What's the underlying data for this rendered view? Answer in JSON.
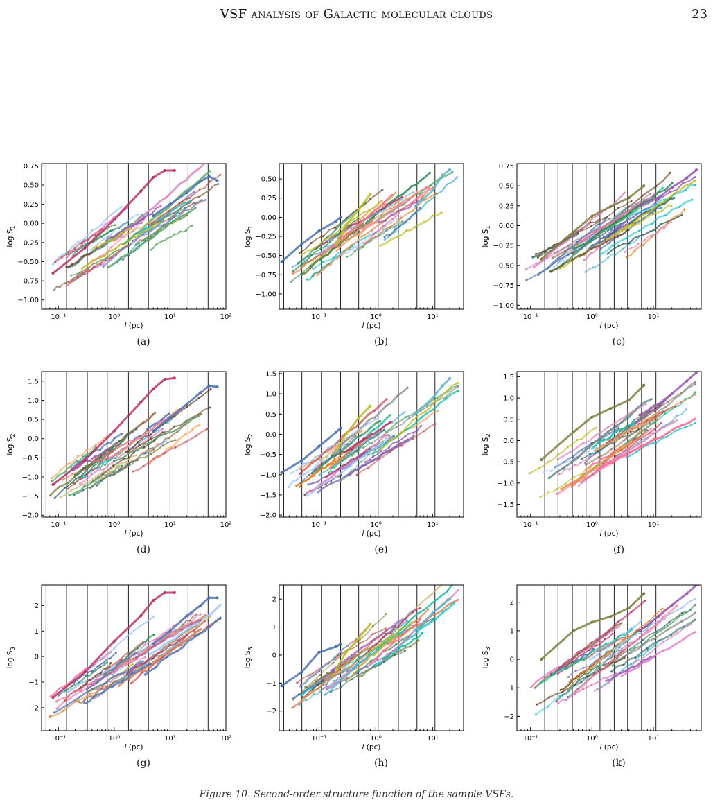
{
  "header": {
    "running_title": "VSF analysis of Galactic molecular clouds",
    "page_number": "23"
  },
  "caption": {
    "text": "Figure 10. Second-order structure function of the sample VSFs."
  },
  "style": {
    "palette": [
      "#4c72b0",
      "#dd8452",
      "#55a868",
      "#c44e52",
      "#8172b3",
      "#937860",
      "#da8bc3",
      "#8c8c8c",
      "#ccb974",
      "#64b5cd",
      "#b8336a",
      "#2e8b57",
      "#9b59b6",
      "#e67e22",
      "#1abc9c",
      "#7f7f3f",
      "#e377c2",
      "#17becf",
      "#bcbd22",
      "#6b4226",
      "#ff6f91",
      "#3c6e71",
      "#a0c4ff",
      "#f4a261"
    ]
  },
  "chart_data": [
    {
      "panel": "(a)",
      "type": "line",
      "xlabel": "l (pc)",
      "ylabel": "log S1",
      "xscale": "log",
      "xlim": [
        0.05,
        100
      ],
      "ylim": [
        -1.12,
        0.78
      ],
      "yticks": [
        -1.0,
        -0.75,
        -0.5,
        -0.25,
        0.0,
        0.25,
        0.5,
        0.75
      ],
      "ytick_labels": [
        "−1.00",
        "−0.75",
        "−0.50",
        "−0.25",
        "0.00",
        "0.25",
        "0.50",
        "0.75"
      ],
      "xticks": [
        0.1,
        1,
        10,
        100
      ],
      "xtick_labels": [
        "10⁻¹",
        "10⁰",
        "10¹",
        "10²"
      ],
      "vlines": [
        0.06,
        0.14,
        0.33,
        0.75,
        1.8,
        4.1,
        10,
        21,
        48
      ],
      "n_series": 34,
      "highlight": [
        {
          "x": [
            0.08,
            0.3,
            1,
            3,
            5,
            8,
            12
          ],
          "y": [
            -0.65,
            -0.32,
            0.05,
            0.42,
            0.6,
            0.69,
            0.69
          ],
          "color": "#b8336a"
        },
        {
          "x": [
            5,
            10,
            20,
            35,
            50,
            70
          ],
          "y": [
            0.1,
            0.25,
            0.4,
            0.55,
            0.61,
            0.56
          ],
          "color": "#4c72b0"
        }
      ],
      "band_start": [
        -0.95,
        -0.55
      ],
      "band_slope": 0.5
    },
    {
      "panel": "(b)",
      "type": "line",
      "xlabel": "l (pc)",
      "ylabel": "log S1",
      "xscale": "log",
      "xlim": [
        0.02,
        35
      ],
      "ylim": [
        -1.2,
        0.7
      ],
      "yticks": [
        -1.0,
        -0.75,
        -0.5,
        -0.25,
        0.0,
        0.25,
        0.5
      ],
      "ytick_labels": [
        "−1.00",
        "−0.75",
        "−0.50",
        "−0.25",
        "0.00",
        "0.25",
        "0.50"
      ],
      "xticks": [
        0.1,
        1,
        10
      ],
      "xtick_labels": [
        "10⁻¹",
        "10⁰",
        "10¹"
      ],
      "vlines": [
        0.024,
        0.05,
        0.11,
        0.24,
        0.5,
        1.1,
        2.5,
        5.3,
        11
      ],
      "n_series": 34,
      "highlight": [
        {
          "x": [
            0.022,
            0.05,
            0.1,
            0.2,
            0.24
          ],
          "y": [
            -0.58,
            -0.35,
            -0.18,
            -0.05,
            0.0
          ],
          "color": "#4c72b0"
        },
        {
          "x": [
            0.2,
            0.3,
            0.5,
            0.8
          ],
          "y": [
            -0.35,
            -0.1,
            0.1,
            0.3
          ],
          "color": "#bcbd22"
        },
        {
          "x": [
            5,
            10,
            15,
            20
          ],
          "y": [
            0.15,
            0.35,
            0.55,
            0.62
          ],
          "color": "#64b5cd"
        }
      ],
      "band_start": [
        -1.0,
        -0.55
      ],
      "band_slope": 0.55
    },
    {
      "panel": "(c)",
      "type": "line",
      "xlabel": "l (pc)",
      "ylabel": "log S1",
      "xscale": "log",
      "xlim": [
        0.06,
        60
      ],
      "ylim": [
        -1.05,
        0.78
      ],
      "yticks": [
        -1.0,
        -0.75,
        -0.5,
        -0.25,
        0.0,
        0.25,
        0.5,
        0.75
      ],
      "ytick_labels": [
        "−1.00",
        "−0.75",
        "−0.50",
        "−0.25",
        "0.00",
        "0.25",
        "0.50",
        "0.75"
      ],
      "xticks": [
        0.1,
        1,
        10
      ],
      "xtick_labels": [
        "10⁻¹",
        "10⁰",
        "10¹"
      ],
      "vlines": [
        0.17,
        0.28,
        0.48,
        0.8,
        1.35,
        2.3,
        3.8,
        6.4,
        11
      ],
      "n_series": 34,
      "highlight": [
        {
          "x": [
            0.15,
            0.5,
            1,
            2,
            4,
            7
          ],
          "y": [
            -0.42,
            -0.08,
            0.12,
            0.24,
            0.35,
            0.5
          ],
          "color": "#7f7f3f"
        },
        {
          "x": [
            6,
            12,
            20,
            35,
            50
          ],
          "y": [
            0.25,
            0.35,
            0.48,
            0.6,
            0.7
          ],
          "color": "#9b59b6"
        }
      ],
      "band_start": [
        -0.98,
        -0.45
      ],
      "band_slope": 0.52
    },
    {
      "panel": "(d)",
      "type": "line",
      "xlabel": "l (pc)",
      "ylabel": "log S2",
      "xscale": "log",
      "xlim": [
        0.05,
        100
      ],
      "ylim": [
        -2.05,
        1.75
      ],
      "yticks": [
        -2.0,
        -1.5,
        -1.0,
        -0.5,
        0.0,
        0.5,
        1.0,
        1.5
      ],
      "ytick_labels": [
        "−2.0",
        "−1.5",
        "−1.0",
        "−0.5",
        "0.0",
        "0.5",
        "1.0",
        "1.5"
      ],
      "xticks": [
        0.1,
        1,
        10,
        100
      ],
      "xtick_labels": [
        "10⁻¹",
        "10⁰",
        "10¹",
        "10²"
      ],
      "vlines": [
        0.06,
        0.14,
        0.33,
        0.75,
        1.8,
        4.1,
        10,
        21,
        48
      ],
      "n_series": 34,
      "highlight": [
        {
          "x": [
            0.08,
            0.3,
            1,
            3,
            5,
            8,
            12
          ],
          "y": [
            -1.2,
            -0.55,
            0.2,
            0.95,
            1.3,
            1.55,
            1.58
          ],
          "color": "#b8336a"
        },
        {
          "x": [
            5,
            10,
            20,
            35,
            50,
            70
          ],
          "y": [
            0.2,
            0.55,
            0.9,
            1.2,
            1.38,
            1.35
          ],
          "color": "#4c72b0"
        }
      ],
      "band_start": [
        -1.85,
        -1.05
      ],
      "band_slope": 1.0
    },
    {
      "panel": "(e)",
      "type": "line",
      "xlabel": "l (pc)",
      "ylabel": "log S2",
      "xscale": "log",
      "xlim": [
        0.02,
        35
      ],
      "ylim": [
        -2.05,
        1.55
      ],
      "yticks": [
        -2.0,
        -1.5,
        -1.0,
        -0.5,
        0.0,
        0.5,
        1.0,
        1.5
      ],
      "ytick_labels": [
        "−2.0",
        "−1.5",
        "−1.0",
        "−0.5",
        "0.0",
        "0.5",
        "1.0",
        "1.5"
      ],
      "xticks": [
        0.1,
        1,
        10
      ],
      "xtick_labels": [
        "10⁻¹",
        "10⁰",
        "10¹"
      ],
      "vlines": [
        0.024,
        0.05,
        0.11,
        0.24,
        0.5,
        1.1,
        2.5,
        5.3,
        11
      ],
      "n_series": 34,
      "highlight": [
        {
          "x": [
            0.022,
            0.05,
            0.1,
            0.2,
            0.24
          ],
          "y": [
            -0.95,
            -0.65,
            -0.3,
            0.05,
            0.15
          ],
          "color": "#4c72b0"
        },
        {
          "x": [
            0.2,
            0.3,
            0.5,
            0.8
          ],
          "y": [
            -0.4,
            0.0,
            0.4,
            0.7
          ],
          "color": "#bcbd22"
        },
        {
          "x": [
            5,
            10,
            15,
            20
          ],
          "y": [
            0.5,
            0.9,
            1.2,
            1.38
          ],
          "color": "#64b5cd"
        }
      ],
      "band_start": [
        -1.85,
        -1.05
      ],
      "band_slope": 1.05
    },
    {
      "panel": "(f)",
      "type": "line",
      "xlabel": "l (pc)",
      "ylabel": "log S2",
      "xscale": "log",
      "xlim": [
        0.06,
        60
      ],
      "ylim": [
        -1.8,
        1.62
      ],
      "yticks": [
        -1.5,
        -1.0,
        -0.5,
        0.0,
        0.5,
        1.0,
        1.5
      ],
      "ytick_labels": [
        "−1.5",
        "−1.0",
        "−0.5",
        "0.0",
        "0.5",
        "1.0",
        "1.5"
      ],
      "xticks": [
        0.1,
        1,
        10
      ],
      "xtick_labels": [
        "10⁻¹",
        "10⁰",
        "10¹"
      ],
      "vlines": [
        0.17,
        0.28,
        0.48,
        0.8,
        1.35,
        2.3,
        3.8,
        6.4,
        11
      ],
      "n_series": 34,
      "highlight": [
        {
          "x": [
            0.15,
            0.5,
            1,
            2,
            4,
            7
          ],
          "y": [
            -0.45,
            0.2,
            0.55,
            0.75,
            0.95,
            1.3
          ],
          "color": "#7f7f3f"
        },
        {
          "x": [
            6,
            12,
            20,
            35,
            50
          ],
          "y": [
            0.6,
            0.85,
            1.1,
            1.4,
            1.6
          ],
          "color": "#9b59b6"
        }
      ],
      "band_start": [
        -1.7,
        -0.85
      ],
      "band_slope": 0.98
    },
    {
      "panel": "(g)",
      "type": "line",
      "xlabel": "l (pc)",
      "ylabel": "log S3",
      "xscale": "log",
      "xlim": [
        0.05,
        100
      ],
      "ylim": [
        -2.9,
        2.8
      ],
      "yticks": [
        -2,
        -1,
        0,
        1,
        2
      ],
      "ytick_labels": [
        "−2",
        "−1",
        "0",
        "1",
        "2"
      ],
      "xticks": [
        0.1,
        1,
        10,
        100
      ],
      "xtick_labels": [
        "10⁻¹",
        "10⁰",
        "10¹",
        "10²"
      ],
      "vlines": [
        0.06,
        0.14,
        0.33,
        0.75,
        1.8,
        4.1,
        10,
        21,
        48
      ],
      "n_series": 34,
      "highlight": [
        {
          "x": [
            0.08,
            0.3,
            1,
            3,
            5,
            8,
            12
          ],
          "y": [
            -1.6,
            -0.6,
            0.6,
            1.6,
            2.2,
            2.5,
            2.5
          ],
          "color": "#b8336a"
        },
        {
          "x": [
            5,
            10,
            20,
            35,
            50,
            70
          ],
          "y": [
            0.5,
            1.0,
            1.6,
            2.0,
            2.3,
            2.3
          ],
          "color": "#4c72b0"
        }
      ],
      "band_start": [
        -2.6,
        -1.4
      ],
      "band_slope": 1.5
    },
    {
      "panel": "(h)",
      "type": "line",
      "xlabel": "l (pc)",
      "ylabel": "log S3",
      "xscale": "log",
      "xlim": [
        0.02,
        35
      ],
      "ylim": [
        -2.7,
        2.5
      ],
      "yticks": [
        -2,
        -1,
        0,
        1,
        2
      ],
      "ytick_labels": [
        "−2",
        "−1",
        "0",
        "1",
        "2"
      ],
      "xticks": [
        0.1,
        1,
        10
      ],
      "xtick_labels": [
        "10⁻¹",
        "10⁰",
        "10¹"
      ],
      "vlines": [
        0.024,
        0.05,
        0.11,
        0.24,
        0.5,
        1.1,
        2.5,
        5.3,
        11
      ],
      "n_series": 34,
      "highlight": [
        {
          "x": [
            0.022,
            0.05,
            0.1,
            0.2,
            0.24
          ],
          "y": [
            -1.1,
            -0.6,
            0.1,
            0.3,
            0.4
          ],
          "color": "#4c72b0"
        },
        {
          "x": [
            0.2,
            0.3,
            0.5,
            0.8
          ],
          "y": [
            -0.5,
            0.1,
            0.6,
            1.1
          ],
          "color": "#bcbd22"
        },
        {
          "x": [
            5,
            10,
            15,
            20
          ],
          "y": [
            0.9,
            1.5,
            1.8,
            2.0
          ],
          "color": "#64b5cd"
        }
      ],
      "band_start": [
        -2.2,
        -1.2
      ],
      "band_slope": 1.5
    },
    {
      "panel": "(k)",
      "type": "line",
      "xlabel": "l (pc)",
      "ylabel": "log S3",
      "xscale": "log",
      "xlim": [
        0.06,
        60
      ],
      "ylim": [
        -2.5,
        2.6
      ],
      "yticks": [
        -2,
        -1,
        0,
        1,
        2
      ],
      "ytick_labels": [
        "−2",
        "−1",
        "0",
        "1",
        "2"
      ],
      "xticks": [
        0.1,
        1,
        10
      ],
      "xtick_labels": [
        "10⁻¹",
        "10⁰",
        "10¹"
      ],
      "vlines": [
        0.17,
        0.28,
        0.48,
        0.8,
        1.35,
        2.3,
        3.8,
        6.4,
        11
      ],
      "n_series": 34,
      "highlight": [
        {
          "x": [
            0.15,
            0.5,
            1,
            2,
            4,
            7
          ],
          "y": [
            0.0,
            1.0,
            1.3,
            1.5,
            1.8,
            2.3
          ],
          "color": "#7f7f3f"
        },
        {
          "x": [
            6,
            12,
            20,
            35,
            50
          ],
          "y": [
            1.0,
            1.5,
            1.9,
            2.3,
            2.6
          ],
          "color": "#9b59b6"
        }
      ],
      "band_start": [
        -2.3,
        -1.0
      ],
      "band_slope": 1.45
    }
  ]
}
